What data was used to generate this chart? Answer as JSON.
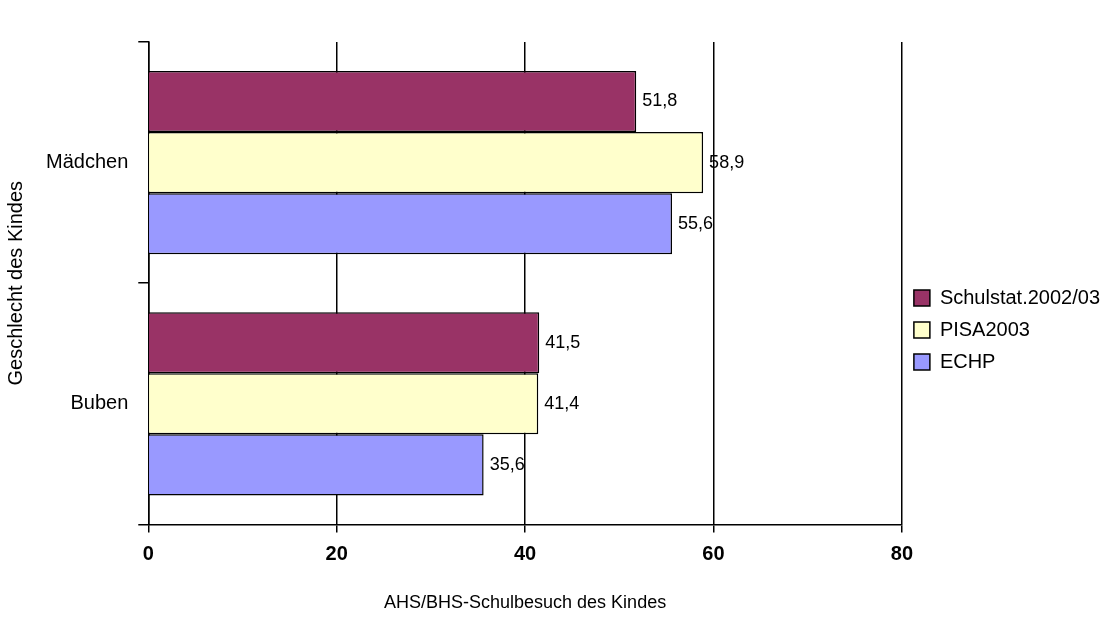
{
  "chart_data": {
    "type": "bar",
    "orientation": "horizontal",
    "xlabel": "AHS/BHS-Schulbesuch des Kindes",
    "ylabel": "Geschlecht des Kindes",
    "categories": [
      "Mädchen",
      "Buben"
    ],
    "series": [
      {
        "name": "Schulstat.2002/03",
        "color": "#993366",
        "values": [
          51.8,
          41.5
        ],
        "value_labels": [
          "51,8",
          "41,5"
        ]
      },
      {
        "name": "PISA2003",
        "color": "#ffffcc",
        "values": [
          58.9,
          41.4
        ],
        "value_labels": [
          "58,9",
          "41,4"
        ]
      },
      {
        "name": "ECHP",
        "color": "#9999ff",
        "values": [
          55.6,
          35.6
        ],
        "value_labels": [
          "55,6",
          "35,6"
        ]
      }
    ],
    "xlim": [
      0,
      80
    ],
    "xticks": [
      0,
      20,
      40,
      60,
      80
    ],
    "grid": "x",
    "legend": "right"
  }
}
